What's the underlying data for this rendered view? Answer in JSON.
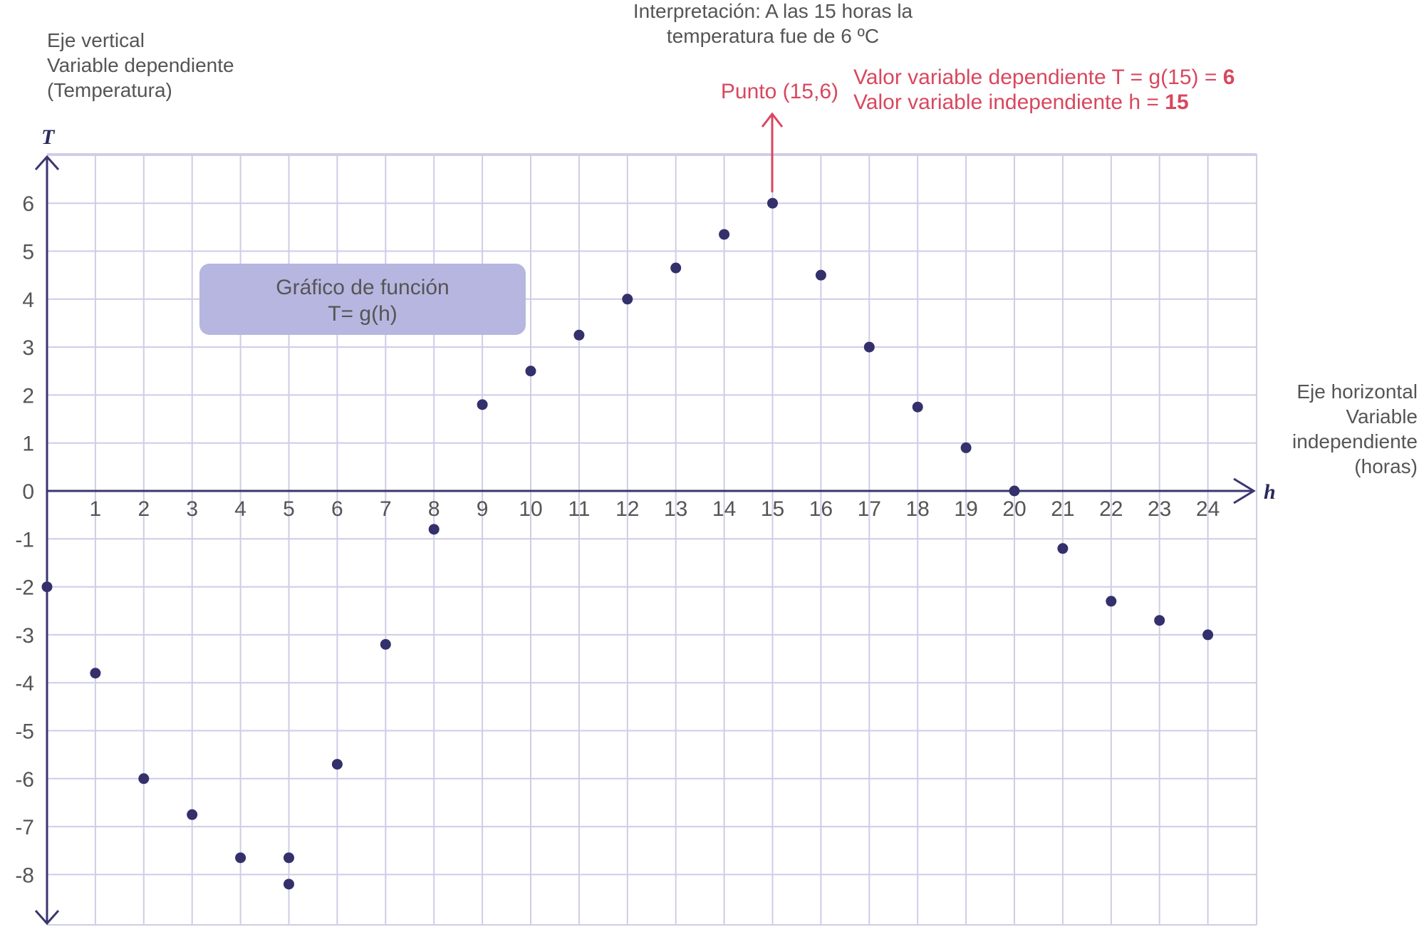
{
  "colors": {
    "grid": "#cfcce6",
    "axis": "#3a3670",
    "point": "#33306b",
    "accent_red": "#d9475e",
    "box_fill": "#b6b6e0",
    "text": "#555555"
  },
  "labels": {
    "vertical_axis": [
      "Eje vertical",
      "Variable dependiente",
      "(Temperatura)"
    ],
    "horizontal_axis": [
      "Eje horizontal",
      "Variable",
      "independiente",
      "(horas)"
    ],
    "interpretation": [
      "Interpretación: A las 15 horas la",
      "temperatura fue de 6 ºC"
    ],
    "point_label": "Punto (15,6)",
    "dependent_value_text": "Valor variable dependiente T = g(15) = ",
    "dependent_value_bold": "6",
    "independent_value_text": "Valor variable independiente h = ",
    "independent_value_bold": "15",
    "function_box": [
      "Gráfico de función",
      "T= g(h)"
    ]
  },
  "chart_data": {
    "type": "scatter",
    "xlabel": "h",
    "ylabel": "T",
    "xlim": [
      0,
      25
    ],
    "ylim": [
      -9,
      7
    ],
    "x_ticks": [
      1,
      2,
      3,
      4,
      5,
      6,
      7,
      8,
      9,
      10,
      11,
      12,
      13,
      14,
      15,
      16,
      17,
      18,
      19,
      20,
      21,
      22,
      23,
      24
    ],
    "y_ticks": [
      6,
      5,
      4,
      3,
      2,
      1,
      0,
      -1,
      -2,
      -3,
      -4,
      -5,
      -6,
      -7,
      -8
    ],
    "grid": true,
    "points": [
      {
        "x": 0,
        "y": -2
      },
      {
        "x": 1,
        "y": -3.8
      },
      {
        "x": 2,
        "y": -6
      },
      {
        "x": 3,
        "y": -6.75
      },
      {
        "x": 4,
        "y": -7.65
      },
      {
        "x": 5,
        "y": -7.65
      },
      {
        "x": 5,
        "y": -8.2
      },
      {
        "x": 6,
        "y": -5.7
      },
      {
        "x": 7,
        "y": -3.2
      },
      {
        "x": 8,
        "y": -0.8
      },
      {
        "x": 9,
        "y": 1.8
      },
      {
        "x": 10,
        "y": 2.5
      },
      {
        "x": 11,
        "y": 3.25
      },
      {
        "x": 12,
        "y": 4
      },
      {
        "x": 13,
        "y": 4.65
      },
      {
        "x": 14,
        "y": 5.35
      },
      {
        "x": 15,
        "y": 6
      },
      {
        "x": 16,
        "y": 4.5
      },
      {
        "x": 17,
        "y": 3
      },
      {
        "x": 18,
        "y": 1.75
      },
      {
        "x": 19,
        "y": 0.9
      },
      {
        "x": 20,
        "y": 0
      },
      {
        "x": 21,
        "y": -1.2
      },
      {
        "x": 22,
        "y": -2.3
      },
      {
        "x": 23,
        "y": -2.7
      },
      {
        "x": 24,
        "y": -3
      }
    ],
    "highlight": {
      "x": 15,
      "y": 6
    }
  }
}
